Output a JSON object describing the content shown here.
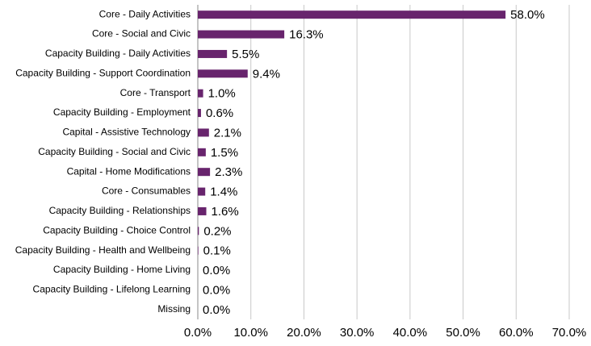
{
  "chart_data": {
    "type": "bar",
    "orientation": "horizontal",
    "categories": [
      "Core - Daily Activities",
      "Core - Social and Civic",
      "Capacity Building - Daily Activities",
      "Capacity Building - Support Coordination",
      "Core - Transport",
      "Capacity Building - Employment",
      "Capital - Assistive Technology",
      "Capacity Building - Social and Civic",
      "Capital - Home Modifications",
      "Core - Consumables",
      "Capacity Building - Relationships",
      "Capacity Building - Choice Control",
      "Capacity Building - Health and Wellbeing",
      "Capacity Building - Home Living",
      "Capacity Building - Lifelong Learning",
      "Missing"
    ],
    "values": [
      58.0,
      16.3,
      5.5,
      9.4,
      1.0,
      0.6,
      2.1,
      1.5,
      2.3,
      1.4,
      1.6,
      0.2,
      0.1,
      0.0,
      0.0,
      0.0
    ],
    "value_labels": [
      "58.0%",
      "16.3%",
      "5.5%",
      "9.4%",
      "1.0%",
      "0.6%",
      "2.1%",
      "1.5%",
      "2.3%",
      "1.4%",
      "1.6%",
      "0.2%",
      "0.1%",
      "0.0%",
      "0.0%",
      "0.0%"
    ],
    "color": "#68246d",
    "xlim": [
      0,
      70
    ],
    "xticks": [
      {
        "value": 0,
        "label": "0.0%"
      },
      {
        "value": 10,
        "label": "10.0%"
      },
      {
        "value": 20,
        "label": "20.0%"
      },
      {
        "value": 30,
        "label": "30.0%"
      },
      {
        "value": 40,
        "label": "40.0%"
      },
      {
        "value": 50,
        "label": "50.0%"
      },
      {
        "value": 60,
        "label": "60.0%"
      },
      {
        "value": 70,
        "label": "70.0%"
      }
    ],
    "grid": true
  }
}
